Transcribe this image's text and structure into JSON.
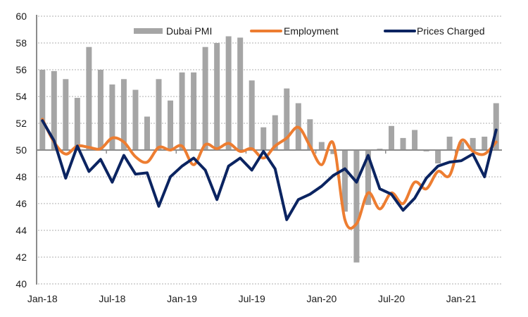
{
  "chart_data": {
    "type": "bar+line",
    "title": "",
    "xlabel": "",
    "ylabel": "",
    "ylim": [
      40,
      60
    ],
    "yticks": [
      40,
      42,
      44,
      46,
      48,
      50,
      52,
      54,
      56,
      58,
      60
    ],
    "ytick_labels": [
      "40",
      "42",
      "44",
      "46",
      "48",
      "50",
      "52",
      "54",
      "56",
      "58",
      "60"
    ],
    "bar_baseline": 50,
    "grid": "horizontal dotted",
    "legend_position": "top",
    "categories": [
      "Jan-18",
      "Feb-18",
      "Mar-18",
      "Apr-18",
      "May-18",
      "Jun-18",
      "Jul-18",
      "Aug-18",
      "Sep-18",
      "Oct-18",
      "Nov-18",
      "Dec-18",
      "Jan-19",
      "Feb-19",
      "Mar-19",
      "Apr-19",
      "May-19",
      "Jun-19",
      "Jul-19",
      "Aug-19",
      "Sep-19",
      "Oct-19",
      "Nov-19",
      "Dec-19",
      "Jan-20",
      "Feb-20",
      "Mar-20",
      "Apr-20",
      "May-20",
      "Jun-20",
      "Jul-20",
      "Aug-20",
      "Sep-20",
      "Oct-20",
      "Nov-20",
      "Dec-20",
      "Jan-21",
      "Feb-21",
      "Mar-21",
      "Apr-21"
    ],
    "xtick_labels": [
      {
        "index": 0,
        "label": "Jan-18"
      },
      {
        "index": 6,
        "label": "Jul-18"
      },
      {
        "index": 12,
        "label": "Jan-19"
      },
      {
        "index": 18,
        "label": "Jul-19"
      },
      {
        "index": 24,
        "label": "Jan-20"
      },
      {
        "index": 30,
        "label": "Jul-20"
      },
      {
        "index": 36,
        "label": "Jan-21"
      }
    ],
    "series": [
      {
        "name": "Dubai PMI",
        "kind": "bar",
        "color": "#A5A5A5",
        "values": [
          56.0,
          55.9,
          55.3,
          53.9,
          57.7,
          56.0,
          54.9,
          55.3,
          54.5,
          52.5,
          55.3,
          53.7,
          55.8,
          55.8,
          57.7,
          58.0,
          58.5,
          58.4,
          55.2,
          51.7,
          52.6,
          54.6,
          53.5,
          52.3,
          50.6,
          49.7,
          45.4,
          41.6,
          45.9,
          50.1,
          51.8,
          50.9,
          51.5,
          49.9,
          49.0,
          51.0,
          50.6,
          50.9,
          51.0,
          53.5
        ]
      },
      {
        "name": "Employment",
        "kind": "smooth-line",
        "color": "#ED7D31",
        "values": [
          52.3,
          50.6,
          49.7,
          50.3,
          50.2,
          50.1,
          50.9,
          50.6,
          49.5,
          49.1,
          50.2,
          50.0,
          50.3,
          48.9,
          50.4,
          50.1,
          50.5,
          49.9,
          50.1,
          49.4,
          50.3,
          50.9,
          51.7,
          50.3,
          48.9,
          50.5,
          44.8,
          44.5,
          46.8,
          45.6,
          46.8,
          46.0,
          47.6,
          47.1,
          48.4,
          48.1,
          50.7,
          49.9,
          49.7,
          50.6
        ]
      },
      {
        "name": "Prices Charged",
        "kind": "line",
        "color": "#0B2461",
        "values": [
          52.2,
          50.7,
          47.9,
          50.3,
          48.4,
          49.3,
          47.6,
          49.6,
          48.2,
          48.3,
          45.8,
          48.0,
          48.8,
          49.4,
          48.5,
          46.3,
          48.8,
          49.4,
          48.5,
          49.9,
          48.6,
          44.8,
          46.3,
          46.7,
          47.3,
          48.1,
          48.6,
          47.6,
          49.6,
          47.1,
          46.7,
          45.5,
          46.4,
          47.9,
          48.8,
          49.1,
          49.2,
          49.7,
          48.0,
          51.5
        ]
      }
    ]
  },
  "colors": {
    "axis": "#8C8C8C",
    "grid": "#BFBFBF",
    "text": "#1A1A1A"
  }
}
